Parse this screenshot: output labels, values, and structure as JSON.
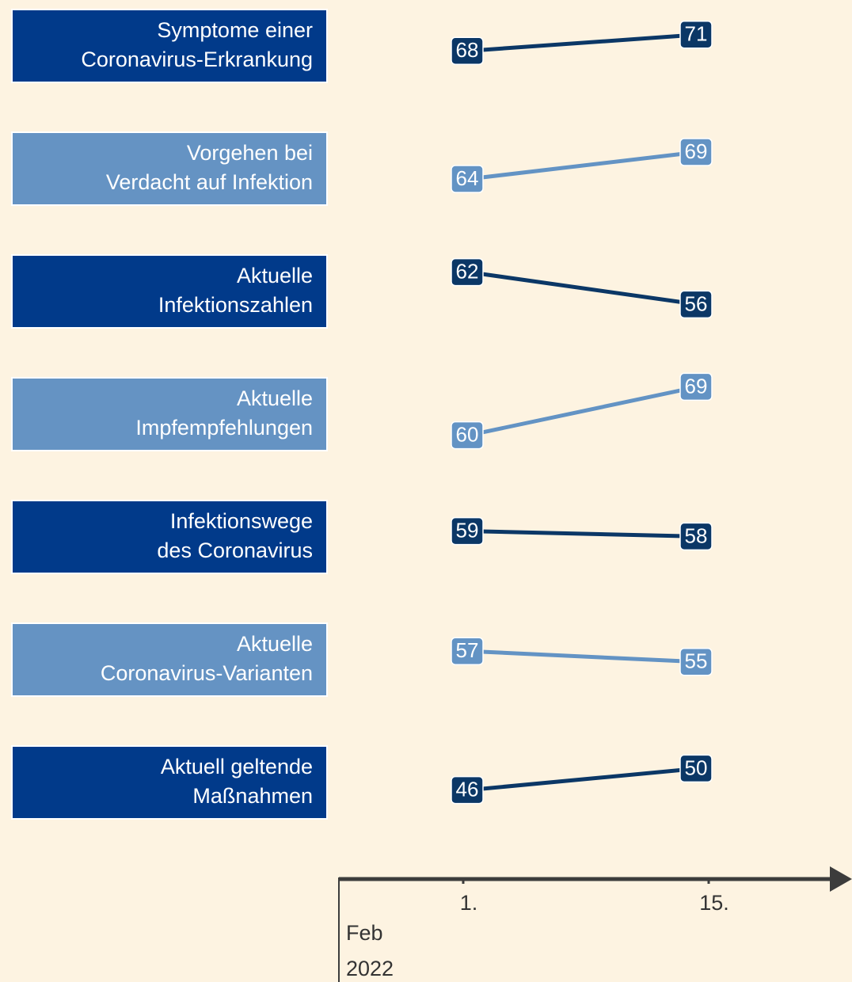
{
  "chart_data": {
    "type": "slope",
    "x": [
      "1.",
      "15."
    ],
    "x_label": [
      "Feb",
      "2022"
    ],
    "series": [
      {
        "name": [
          "Symptome einer",
          "Coronavirus-Erkrankung"
        ],
        "color": "#0b3766",
        "box_color": "#013a8a",
        "values": [
          68,
          71
        ]
      },
      {
        "name": [
          "Vorgehen bei",
          "Verdacht auf Infektion"
        ],
        "color": "#6393c4",
        "box_color": "#6593c3",
        "values": [
          64,
          69
        ]
      },
      {
        "name": [
          "Aktuelle",
          "Infektionszahlen"
        ],
        "color": "#0b3766",
        "box_color": "#013a8a",
        "values": [
          62,
          56
        ]
      },
      {
        "name": [
          "Aktuelle",
          "Impfempfehlungen"
        ],
        "color": "#6393c4",
        "box_color": "#6593c3",
        "values": [
          60,
          69
        ]
      },
      {
        "name": [
          "Infektionswege",
          "des Coronavirus"
        ],
        "color": "#0b3766",
        "box_color": "#013a8a",
        "values": [
          59,
          58
        ]
      },
      {
        "name": [
          "Aktuelle",
          "Coronavirus-Varianten"
        ],
        "color": "#6393c4",
        "box_color": "#6593c3",
        "values": [
          57,
          55
        ]
      },
      {
        "name": [
          "Aktuell geltende",
          "Maßnahmen"
        ],
        "color": "#0b3766",
        "box_color": "#013a8a",
        "values": [
          46,
          50
        ]
      }
    ]
  }
}
